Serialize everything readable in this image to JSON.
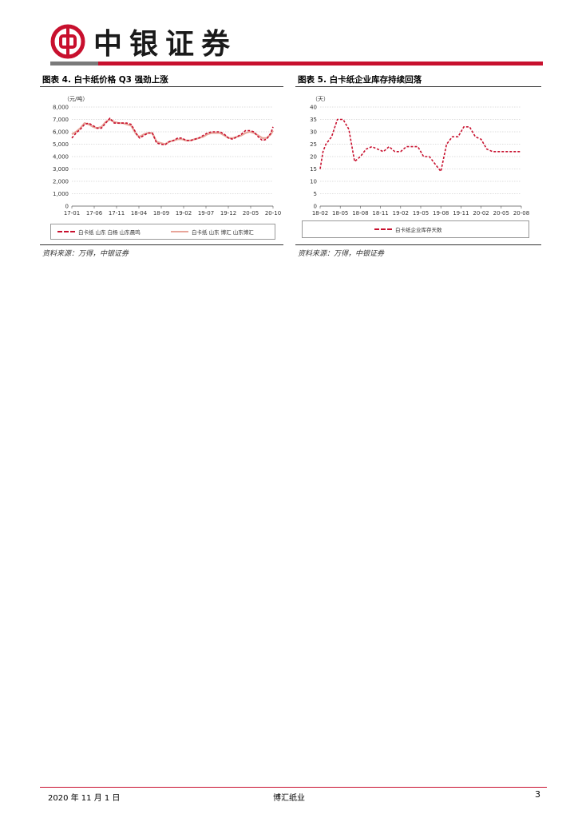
{
  "header": {
    "brand_name": "中银证券",
    "colors": {
      "brand_red": "#c8102e",
      "brand_grey": "#7a7a7a"
    },
    "logo_icon": "bank-of-china-logo-icon"
  },
  "figures": {
    "left": {
      "title": "图表 4. 白卡纸价格 Q3 强劲上涨",
      "source": "资料来源：万得，中银证券"
    },
    "right": {
      "title": "图表 5. 白卡纸企业库存持续回落",
      "source": "资料来源：万得，中银证券"
    }
  },
  "chart_data": [
    {
      "type": "line",
      "unit_label": "（元/吨）",
      "ylim": [
        0,
        8000
      ],
      "yticks": [
        "0",
        "1,000",
        "2,000",
        "3,000",
        "4,000",
        "5,000",
        "6,000",
        "7,000",
        "8,000"
      ],
      "xticks": [
        "17-01",
        "17-06",
        "17-11",
        "18-04",
        "18-09",
        "19-02",
        "19-07",
        "19-12",
        "20-05",
        "20-10"
      ],
      "grid": true,
      "legend_position": "bottom",
      "series": [
        {
          "name": "白卡纸 山东 白杨 山东晨鸣",
          "color": "#c8102e",
          "style": "dashed",
          "x": [
            0,
            2,
            4,
            6,
            8,
            10,
            12,
            14,
            16,
            18,
            20,
            22,
            24,
            26,
            28,
            30,
            31,
            32,
            34,
            36,
            38,
            40,
            42,
            44,
            46,
            48,
            50,
            52,
            54,
            56,
            58,
            60,
            62,
            64,
            66,
            68,
            70,
            72,
            74,
            76,
            78,
            80,
            82,
            84,
            86,
            88,
            90,
            92,
            94,
            95
          ],
          "values": [
            5500,
            5900,
            6200,
            6600,
            6700,
            6500,
            6300,
            6300,
            6700,
            7100,
            6700,
            6700,
            6700,
            6700,
            6600,
            6000,
            5700,
            5500,
            5700,
            5900,
            5900,
            5100,
            5000,
            4950,
            5200,
            5300,
            5500,
            5500,
            5300,
            5300,
            5400,
            5500,
            5700,
            5900,
            6000,
            6000,
            6000,
            5800,
            5500,
            5400,
            5600,
            5800,
            6100,
            6100,
            6000,
            5600,
            5300,
            5400,
            5900,
            6400
          ]
        },
        {
          "name": "白卡纸 山东 博汇 山东博汇",
          "color": "#e8a59a",
          "style": "solid",
          "x": [
            0,
            2,
            4,
            6,
            8,
            10,
            12,
            14,
            16,
            18,
            20,
            22,
            24,
            26,
            28,
            30,
            31,
            32,
            34,
            36,
            38,
            40,
            42,
            44,
            46,
            48,
            50,
            52,
            54,
            56,
            58,
            60,
            62,
            64,
            66,
            68,
            70,
            72,
            74,
            76,
            78,
            80,
            82,
            84,
            86,
            88,
            90,
            92,
            94,
            95
          ],
          "values": [
            5800,
            6000,
            6300,
            6700,
            6600,
            6400,
            6300,
            6400,
            6800,
            7000,
            6800,
            6700,
            6700,
            6600,
            6500,
            5900,
            5700,
            5600,
            5800,
            5900,
            5900,
            5200,
            5100,
            5000,
            5200,
            5300,
            5400,
            5400,
            5300,
            5300,
            5400,
            5500,
            5600,
            5800,
            5900,
            5900,
            5900,
            5700,
            5500,
            5500,
            5600,
            5700,
            5900,
            6000,
            5900,
            5700,
            5500,
            5500,
            5800,
            6100
          ]
        }
      ]
    },
    {
      "type": "line",
      "unit_label": "（天）",
      "ylim": [
        0,
        40
      ],
      "yticks": [
        "0",
        "5",
        "10",
        "15",
        "20",
        "25",
        "30",
        "35",
        "40"
      ],
      "xticks": [
        "18-02",
        "18-05",
        "18-08",
        "18-11",
        "19-02",
        "19-05",
        "19-08",
        "19-11",
        "20-02",
        "20-05",
        "20-08"
      ],
      "grid": true,
      "legend_position": "bottom",
      "series": [
        {
          "name": "白卡纸企业库存天数",
          "color": "#c8102e",
          "style": "dashed",
          "x": [
            0,
            0.5,
            1,
            2,
            3,
            4,
            5,
            6,
            7,
            8,
            9,
            10,
            11,
            12,
            13,
            14,
            15,
            16,
            17,
            18,
            19,
            20,
            21,
            22,
            23,
            24,
            25,
            26,
            27,
            28,
            29,
            30,
            31,
            32,
            33,
            34,
            35
          ],
          "values": [
            15,
            22,
            25,
            28,
            35,
            35,
            31,
            18,
            20,
            23,
            24,
            23,
            22,
            24,
            22,
            22,
            24,
            24,
            24,
            20,
            20,
            17,
            14,
            25,
            28,
            28,
            32,
            32,
            28,
            27,
            23,
            22,
            22,
            22,
            22,
            22,
            22
          ]
        }
      ]
    }
  ],
  "footer": {
    "date": "2020 年 11 月 1 日",
    "company": "博汇纸业",
    "page": "3"
  }
}
